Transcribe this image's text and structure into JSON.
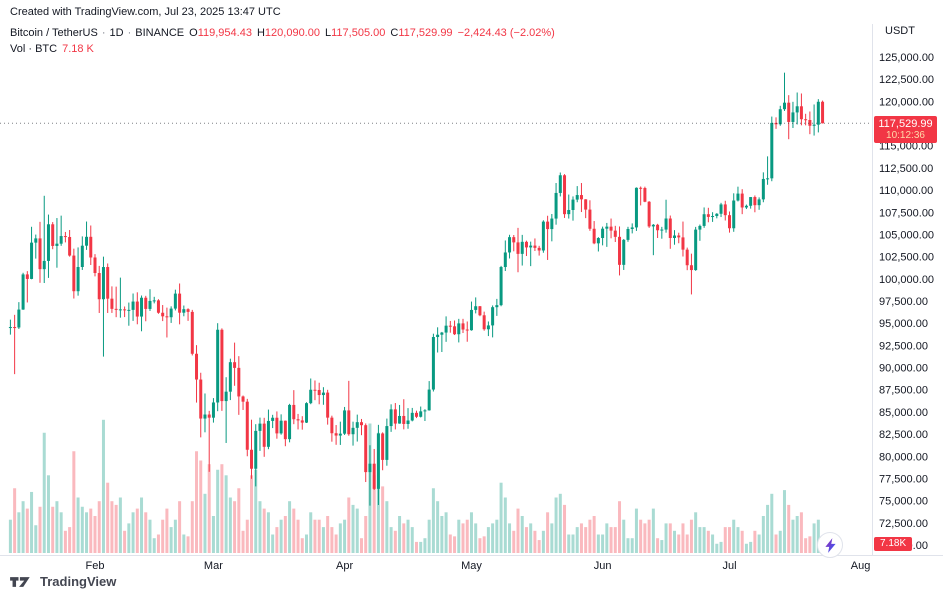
{
  "attribution": "Created with TradingView.com, Jul 23, 2025 13:47 UTC",
  "header": {
    "symbol": "Bitcoin / TetherUS",
    "sep": "·",
    "interval": "1D",
    "exchange": "BINANCE",
    "ohlc": {
      "o_label": "O",
      "o": "119,954.43",
      "h_label": "H",
      "h": "120,090.00",
      "l_label": "L",
      "l": "117,505.00",
      "c_label": "C",
      "c": "117,529.99",
      "change": "−2,424.43 (−2.02%)"
    },
    "volume_row": {
      "label": "Vol · BTC",
      "value": "7.18 K"
    }
  },
  "price_scale": {
    "currency": "USDT",
    "ticks": [
      "125,000.00",
      "122,500.00",
      "120,000.00",
      "117,500.00",
      "115,000.00",
      "112,500.00",
      "110,000.00",
      "107,500.00",
      "105,000.00",
      "102,500.00",
      "100,000.00",
      "97,500.00",
      "95,000.00",
      "92,500.00",
      "90,000.00",
      "87,500.00",
      "85,000.00",
      "82,500.00",
      "80,000.00",
      "77,500.00",
      "75,000.00",
      "72,500.00",
      "70,000.00"
    ],
    "last_price_badge": {
      "price": "117,529.99",
      "countdown": "10:12:36"
    },
    "volume_badge": "7.18K"
  },
  "time_scale": {
    "months": [
      {
        "label": "Feb",
        "index": 20
      },
      {
        "label": "Mar",
        "index": 48
      },
      {
        "label": "Apr",
        "index": 79
      },
      {
        "label": "May",
        "index": 109
      },
      {
        "label": "Jun",
        "index": 140
      },
      {
        "label": "Jul",
        "index": 170
      },
      {
        "label": "Aug",
        "index": 201
      }
    ]
  },
  "footer": {
    "brand": "TradingView"
  },
  "colors": {
    "up": "#089981",
    "down": "#F23645",
    "badge": "#F23645",
    "text": "#131722",
    "muted": "#787b86",
    "grid": "#e0e3eb",
    "bolt_top": "#9C27B0",
    "bolt_bottom": "#2962FF"
  },
  "chart_data": {
    "type": "candlestick",
    "title": "Bitcoin / TetherUS · 1D · BINANCE",
    "symbol": "BTCUSDT",
    "interval": "1D",
    "quote_currency": "USDT",
    "start_date": "2025-01-12",
    "end_date": "2025-07-23",
    "ylabel": "Price (USDT)",
    "ylim": [
      70000,
      125000
    ],
    "y_step": 2500,
    "volume_unit": "K BTC",
    "legend_position": "top-left",
    "grid": false,
    "last_close": 117529.99,
    "candles_format": [
      "open",
      "high",
      "low",
      "close",
      "volume_kbtc"
    ],
    "candles": [
      [
        94488,
        95400,
        93711,
        94566,
        18
      ],
      [
        94566,
        95940,
        89257,
        94516,
        35
      ],
      [
        94516,
        97371,
        94346,
        96534,
        22
      ],
      [
        96534,
        100681,
        96500,
        100497,
        28
      ],
      [
        100497,
        100866,
        97336,
        99987,
        24
      ],
      [
        99987,
        105865,
        99950,
        104077,
        33
      ],
      [
        104077,
        104987,
        102277,
        104556,
        15
      ],
      [
        104556,
        106422,
        99550,
        101089,
        25
      ],
      [
        101089,
        109358,
        99525,
        102016,
        65
      ],
      [
        102016,
        107240,
        100104,
        106146,
        42
      ],
      [
        106146,
        106394,
        103339,
        103706,
        25
      ],
      [
        103706,
        106850,
        101252,
        103960,
        28
      ],
      [
        103960,
        107120,
        103717,
        104819,
        22
      ],
      [
        104819,
        105283,
        104107,
        104714,
        12
      ],
      [
        104714,
        105500,
        102500,
        102620,
        14
      ],
      [
        102620,
        103400,
        97777,
        98603,
        55
      ],
      [
        98603,
        103540,
        98100,
        101332,
        30
      ],
      [
        101332,
        104782,
        101000,
        103733,
        25
      ],
      [
        103733,
        106457,
        103260,
        104735,
        22
      ],
      [
        104735,
        106012,
        101560,
        102405,
        24
      ],
      [
        102405,
        102783,
        100279,
        100655,
        20
      ],
      [
        100655,
        101456,
        96150,
        97700,
        28
      ],
      [
        97700,
        102500,
        91231,
        101328,
        72
      ],
      [
        101328,
        101730,
        96150,
        97763,
        38
      ],
      [
        97763,
        99149,
        96155,
        96615,
        28
      ],
      [
        96615,
        99120,
        95676,
        96554,
        26
      ],
      [
        96554,
        100135,
        95620,
        96558,
        30
      ],
      [
        96558,
        96880,
        95688,
        96482,
        12
      ],
      [
        96482,
        97324,
        94713,
        96500,
        16
      ],
      [
        96500,
        98345,
        95256,
        97437,
        22
      ],
      [
        97437,
        98479,
        94876,
        95747,
        24
      ],
      [
        95747,
        98120,
        94088,
        97869,
        30
      ],
      [
        97869,
        98083,
        95217,
        96608,
        22
      ],
      [
        96608,
        98826,
        96378,
        97508,
        18
      ],
      [
        97508,
        97972,
        97233,
        97570,
        8
      ],
      [
        97570,
        97704,
        96058,
        96175,
        10
      ],
      [
        96175,
        97046,
        95235,
        95773,
        18
      ],
      [
        95773,
        96753,
        93388,
        95671,
        24
      ],
      [
        95671,
        96899,
        95029,
        96644,
        14
      ],
      [
        96644,
        98777,
        96437,
        98333,
        18
      ],
      [
        98333,
        99475,
        94871,
        96181,
        28
      ],
      [
        96181,
        96990,
        95778,
        96578,
        10
      ],
      [
        96578,
        96680,
        95260,
        96273,
        9
      ],
      [
        96273,
        96500,
        91363,
        91552,
        28
      ],
      [
        91552,
        92525,
        86050,
        88648,
        55
      ],
      [
        88648,
        89413,
        82131,
        84250,
        50
      ],
      [
        84250,
        87078,
        82700,
        84705,
        32
      ],
      [
        84705,
        85120,
        78248,
        84349,
        48
      ],
      [
        84349,
        86558,
        83794,
        86064,
        20
      ],
      [
        86064,
        95000,
        85081,
        94261,
        45
      ],
      [
        94261,
        94416,
        85117,
        86220,
        48
      ],
      [
        86220,
        88911,
        81500,
        87281,
        42
      ],
      [
        87281,
        91000,
        86334,
        90604,
        30
      ],
      [
        90604,
        92810,
        87944,
        89962,
        28
      ],
      [
        89962,
        91283,
        84667,
        86742,
        35
      ],
      [
        86742,
        86847,
        85219,
        86154,
        12
      ],
      [
        86154,
        86471,
        80000,
        80734,
        18
      ],
      [
        80734,
        84123,
        77459,
        78595,
        42
      ],
      [
        78595,
        83617,
        76606,
        82862,
        45
      ],
      [
        82862,
        84358,
        80607,
        83680,
        28
      ],
      [
        83680,
        84336,
        79939,
        81066,
        24
      ],
      [
        81066,
        85263,
        80797,
        83983,
        22
      ],
      [
        83983,
        84672,
        83179,
        84343,
        10
      ],
      [
        84343,
        85055,
        81981,
        82579,
        14
      ],
      [
        82579,
        84725,
        82434,
        84010,
        18
      ],
      [
        84010,
        84021,
        81134,
        81929,
        20
      ],
      [
        81929,
        85911,
        81572,
        85787,
        28
      ],
      [
        85787,
        87453,
        83617,
        84175,
        24
      ],
      [
        84175,
        84775,
        83026,
        84043,
        18
      ],
      [
        84043,
        84519,
        83000,
        83793,
        8
      ],
      [
        83793,
        86092,
        83746,
        85987,
        10
      ],
      [
        85987,
        88765,
        85870,
        87498,
        22
      ],
      [
        87498,
        88543,
        86322,
        87471,
        18
      ],
      [
        87471,
        88289,
        85861,
        86900,
        18
      ],
      [
        86900,
        87786,
        85804,
        87177,
        14
      ],
      [
        87177,
        87489,
        83565,
        84353,
        20
      ],
      [
        84353,
        84575,
        81644,
        82597,
        14
      ],
      [
        82597,
        83520,
        81294,
        82334,
        10
      ],
      [
        82334,
        83900,
        81278,
        82548,
        16
      ],
      [
        82548,
        85559,
        82400,
        85169,
        18
      ],
      [
        85169,
        88500,
        82312,
        82485,
        30
      ],
      [
        82485,
        83900,
        81200,
        83205,
        26
      ],
      [
        83205,
        84696,
        81659,
        83843,
        24
      ],
      [
        83843,
        84207,
        82377,
        83504,
        8
      ],
      [
        83504,
        83704,
        77097,
        78214,
        20
      ],
      [
        78214,
        81243,
        74436,
        79163,
        70
      ],
      [
        79163,
        80823,
        76198,
        76329,
        42
      ],
      [
        76329,
        83541,
        74508,
        82573,
        65
      ],
      [
        82573,
        82700,
        78426,
        79591,
        36
      ],
      [
        79591,
        84247,
        78936,
        83404,
        28
      ],
      [
        83404,
        85856,
        82750,
        85287,
        14
      ],
      [
        85287,
        86000,
        83027,
        83684,
        12
      ],
      [
        83684,
        85785,
        83668,
        84542,
        20
      ],
      [
        84542,
        86430,
        83034,
        83641,
        16
      ],
      [
        83641,
        85428,
        83100,
        84030,
        18
      ],
      [
        84030,
        85450,
        83935,
        84895,
        14
      ],
      [
        84895,
        85138,
        84303,
        84450,
        6
      ],
      [
        84450,
        85605,
        84372,
        85063,
        6
      ],
      [
        85063,
        85306,
        83976,
        85174,
        8
      ],
      [
        85174,
        88475,
        85143,
        87518,
        18
      ],
      [
        87518,
        93817,
        87300,
        93441,
        35
      ],
      [
        93441,
        94535,
        91696,
        93699,
        28
      ],
      [
        93699,
        94016,
        91751,
        93943,
        20
      ],
      [
        93943,
        95768,
        92898,
        94720,
        22
      ],
      [
        94720,
        95251,
        93927,
        94646,
        10
      ],
      [
        94646,
        95301,
        93665,
        93754,
        9
      ],
      [
        93754,
        95489,
        92832,
        94978,
        18
      ],
      [
        94978,
        95490,
        93891,
        94284,
        16
      ],
      [
        94284,
        95192,
        92910,
        94207,
        18
      ],
      [
        94207,
        97437,
        94153,
        96494,
        22
      ],
      [
        96494,
        97905,
        96105,
        96910,
        16
      ],
      [
        96910,
        96938,
        95788,
        95891,
        8
      ],
      [
        95891,
        96300,
        94153,
        94315,
        9
      ],
      [
        94315,
        95193,
        93547,
        94748,
        14
      ],
      [
        94748,
        97000,
        93399,
        96802,
        16
      ],
      [
        96802,
        97738,
        95821,
        97032,
        18
      ],
      [
        97032,
        101459,
        96907,
        101330,
        38
      ],
      [
        101330,
        104324,
        100879,
        102970,
        30
      ],
      [
        102970,
        104963,
        102296,
        104696,
        16
      ],
      [
        104696,
        104938,
        103101,
        104106,
        12
      ],
      [
        104106,
        105747,
        100746,
        102812,
        24
      ],
      [
        102812,
        104953,
        101497,
        104169,
        20
      ],
      [
        104169,
        104301,
        102569,
        103539,
        14
      ],
      [
        103539,
        104191,
        101430,
        103744,
        16
      ],
      [
        103744,
        104550,
        103137,
        103489,
        12
      ],
      [
        103489,
        103719,
        102619,
        103191,
        7
      ],
      [
        103191,
        106597,
        102938,
        106446,
        12
      ],
      [
        106446,
        107108,
        102127,
        105606,
        22
      ],
      [
        105606,
        107307,
        104225,
        106791,
        16
      ],
      [
        106791,
        110797,
        106100,
        109678,
        30
      ],
      [
        109678,
        111980,
        109285,
        111673,
        32
      ],
      [
        111673,
        111800,
        106862,
        107287,
        26
      ],
      [
        107287,
        109497,
        106792,
        107757,
        10
      ],
      [
        107757,
        109288,
        106556,
        108929,
        10
      ],
      [
        108929,
        110450,
        108631,
        109440,
        14
      ],
      [
        109440,
        110797,
        107527,
        108959,
        16
      ],
      [
        108959,
        108977,
        106840,
        107802,
        14
      ],
      [
        107802,
        108850,
        105410,
        105641,
        18
      ],
      [
        105641,
        106513,
        103900,
        103998,
        20
      ],
      [
        103998,
        104700,
        103081,
        104598,
        10
      ],
      [
        104598,
        105886,
        103770,
        105652,
        10
      ],
      [
        105652,
        106300,
        103600,
        105881,
        16
      ],
      [
        105881,
        106794,
        104565,
        105432,
        14
      ],
      [
        105432,
        105972,
        104150,
        104730,
        14
      ],
      [
        104730,
        105900,
        100382,
        101575,
        28
      ],
      [
        101575,
        104490,
        101000,
        104390,
        18
      ],
      [
        104390,
        105862,
        104170,
        105615,
        8
      ],
      [
        105615,
        106247,
        105119,
        105793,
        8
      ],
      [
        105793,
        110306,
        105398,
        110261,
        24
      ],
      [
        110261,
        110405,
        108272,
        110232,
        18
      ],
      [
        110232,
        110384,
        108636,
        108686,
        16
      ],
      [
        108686,
        108762,
        105742,
        105905,
        18
      ],
      [
        105905,
        106173,
        102664,
        106090,
        24
      ],
      [
        106090,
        106198,
        104600,
        105472,
        8
      ],
      [
        105472,
        105857,
        104522,
        105552,
        7
      ],
      [
        105552,
        108915,
        105200,
        106797,
        16
      ],
      [
        106797,
        107133,
        103383,
        104601,
        16
      ],
      [
        104601,
        105487,
        103842,
        104883,
        12
      ],
      [
        104883,
        105197,
        104009,
        104668,
        10
      ],
      [
        104668,
        106453,
        102513,
        103290,
        16
      ],
      [
        103290,
        103519,
        100975,
        101532,
        10
      ],
      [
        101532,
        102836,
        98240,
        100987,
        18
      ],
      [
        100987,
        105851,
        100900,
        105547,
        22
      ],
      [
        105547,
        106116,
        104283,
        105962,
        14
      ],
      [
        105962,
        108045,
        105744,
        107280,
        14
      ],
      [
        107280,
        108005,
        106372,
        106979,
        12
      ],
      [
        106979,
        107507,
        106416,
        107078,
        10
      ],
      [
        107078,
        107405,
        106817,
        107331,
        5
      ],
      [
        107331,
        108567,
        106963,
        108385,
        6
      ],
      [
        108385,
        108798,
        106572,
        107173,
        14
      ],
      [
        107173,
        107580,
        105200,
        105699,
        14
      ],
      [
        105699,
        109638,
        105300,
        108824,
        18
      ],
      [
        108824,
        110386,
        108721,
        109605,
        14
      ],
      [
        109605,
        110100,
        107288,
        108040,
        12
      ],
      [
        108040,
        108368,
        107867,
        108231,
        5
      ],
      [
        108231,
        109216,
        107910,
        109216,
        6
      ],
      [
        109216,
        109396,
        107500,
        108300,
        12
      ],
      [
        108300,
        109180,
        107780,
        108953,
        10
      ],
      [
        108953,
        111999,
        108631,
        111255,
        20
      ],
      [
        111255,
        113800,
        110600,
        111326,
        26
      ],
      [
        111326,
        118286,
        111000,
        117571,
        32
      ],
      [
        117571,
        118200,
        116900,
        117419,
        10
      ],
      [
        117419,
        119500,
        117250,
        119116,
        12
      ],
      [
        119116,
        123236,
        118919,
        119850,
        34
      ],
      [
        119850,
        120700,
        115736,
        117680,
        26
      ],
      [
        117680,
        119950,
        117000,
        118754,
        18
      ],
      [
        118754,
        120999,
        117400,
        119445,
        20
      ],
      [
        119445,
        120888,
        117300,
        117988,
        22
      ],
      [
        117988,
        118600,
        117300,
        117900,
        8
      ],
      [
        117900,
        118856,
        116300,
        117250,
        9
      ],
      [
        117250,
        119650,
        116145,
        117373,
        16
      ],
      [
        117373,
        120250,
        116500,
        119954,
        18
      ],
      [
        119954.43,
        120090,
        117505,
        117529.99,
        7.18
      ]
    ]
  }
}
